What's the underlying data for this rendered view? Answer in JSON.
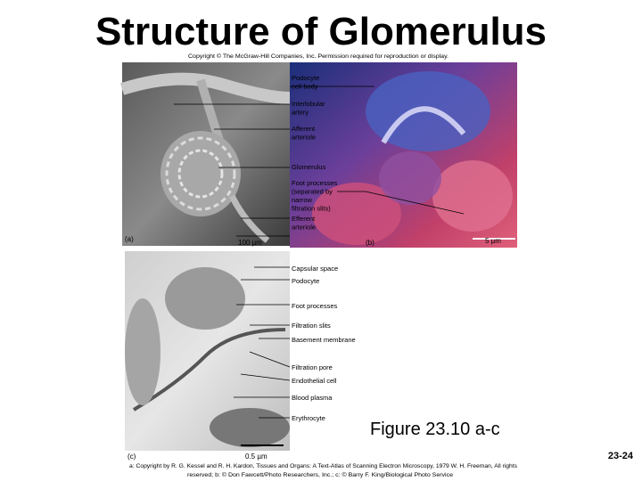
{
  "title": "Structure of Glomerulus",
  "copyright": "Copyright © The McGraw-Hill Companies, Inc. Permission required for reproduction or display.",
  "panel_a": {
    "label": "(a)",
    "scale": "100 µm"
  },
  "panel_b": {
    "label": "(b)",
    "scale": "5 µm"
  },
  "panel_c": {
    "label": "(c)",
    "scale": "0.5 µm"
  },
  "labels_ab": [
    [
      "Podocyte",
      "cell body"
    ],
    [
      "Interlobular",
      "artery"
    ],
    [
      "Afferent",
      "arteriole"
    ],
    [
      "Glomerulus"
    ],
    [
      "Foot processes",
      "(separated by",
      "narrow",
      "filtration slits)"
    ],
    [
      "Efferent",
      "arteriole"
    ]
  ],
  "labels_c": [
    "Capsular space",
    "Podocyte",
    "Foot processes",
    "Filtration slits",
    "Basement membrane",
    "Filtration pore",
    "Endothelial cell",
    "Blood plasma",
    "Erythrocyte"
  ],
  "caption": "Figure 23.10 a-c",
  "page_number": "23-24",
  "credits": [
    "a: Copyright by R. G. Kessel and R. H. Kardon, Tissues and Organs: A Text-Atlas of Scanning Electron Microscopy, 1979 W. H. Freeman, All rights",
    "reserved; b: © Don Fawcett/Photo Researchers, Inc.; c: © Barry F. King/Biological Photo Service"
  ]
}
